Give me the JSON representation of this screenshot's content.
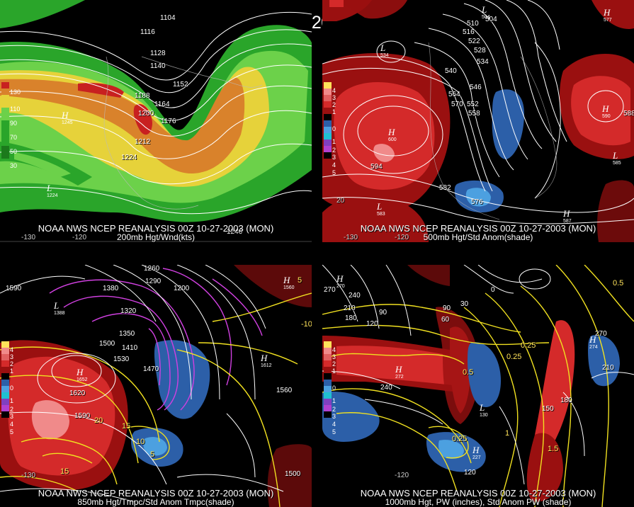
{
  "title": "00Z 10-27-2003 (MON)",
  "panels": [
    {
      "id": "p1",
      "caption_line1": "NOAA NWS NCEP REANALYSIS 00Z 10-27-2003 (MON)",
      "caption_line2": "200mb Hgt/Wnd(kts)",
      "legend": [
        "130",
        "110",
        "90",
        "70",
        "50",
        "30"
      ],
      "labels": [
        "1104",
        "1116",
        "1128",
        "1140",
        "1152",
        "1164",
        "1176",
        "1188",
        "1200",
        "1212",
        "1224",
        "1245",
        "1224",
        "1246"
      ],
      "centers": [
        {
          "letter": "H",
          "value": "1245"
        },
        {
          "letter": "L",
          "value": "1224"
        }
      ],
      "lon_labels": [
        "-130",
        "-120"
      ]
    },
    {
      "id": "p2",
      "caption_line1": "NOAA NWS NCEP REANALYSIS 00Z 10-27-2003 (MON)",
      "caption_line2": "500mb Hgt/Std Anom(shade)",
      "legend": [
        "4",
        "3",
        "2",
        "1",
        "0",
        "1",
        "2",
        "3",
        "4",
        "5"
      ],
      "labels": [
        "504",
        "510",
        "516",
        "522",
        "528",
        "534",
        "540",
        "546",
        "552",
        "558",
        "564",
        "570",
        "576",
        "582",
        "588",
        "594",
        "600",
        "20"
      ],
      "centers": [
        {
          "letter": "H",
          "value": "600"
        },
        {
          "letter": "L",
          "value": "534"
        },
        {
          "letter": "L",
          "value": "583"
        },
        {
          "letter": "H",
          "value": "590"
        },
        {
          "letter": "L",
          "value": "585"
        },
        {
          "letter": "H",
          "value": "587"
        },
        {
          "letter": "H",
          "value": "577"
        },
        {
          "letter": "L",
          "value": "504"
        }
      ],
      "lon_labels": [
        "-130",
        "-120"
      ]
    },
    {
      "id": "p3",
      "caption_line1": "NOAA NWS NCEP REANALYSIS 00Z 10-27-2003 (MON)",
      "caption_line2": "850mb Hgt/Tmpc/Std Anom Tmpc(shade)",
      "legend": [
        "4",
        "3",
        "2",
        "1",
        "0",
        "1",
        "2",
        "3",
        "4",
        "5"
      ],
      "labels": [
        "1590",
        "1380",
        "1260",
        "1290",
        "1200",
        "1320",
        "1350",
        "1410",
        "1470",
        "1500",
        "1530",
        "1560",
        "1590",
        "1620",
        "1500",
        "1260"
      ],
      "yellow_labels": [
        "5",
        "10",
        "15",
        "20",
        "15",
        "5",
        "10",
        "-10"
      ],
      "centers": [
        {
          "letter": "H",
          "value": "1652"
        },
        {
          "letter": "H",
          "value": "1612"
        },
        {
          "letter": "H",
          "value": "1560"
        },
        {
          "letter": "L",
          "value": "1388"
        }
      ],
      "lon_labels": [
        "-130"
      ]
    },
    {
      "id": "p4",
      "caption_line1": "NOAA NWS NCEP REANALYSIS 00Z 10-27-2003 (MON)",
      "caption_line2": "1000mb Hgt, PW (inches), Std Anom PW (shade)",
      "legend": [
        "4",
        "3",
        "2",
        "1",
        "0",
        "1",
        "2",
        "3",
        "4",
        "5"
      ],
      "labels": [
        "270",
        "240",
        "210",
        "180",
        "90",
        "60",
        "30",
        "0",
        "120",
        "150",
        "180",
        "210",
        "240",
        "270",
        "120",
        "90"
      ],
      "yellow_labels": [
        "0.25",
        "0.5",
        "0.25",
        "0.25",
        "1",
        "1.5",
        "0.5",
        "0.25",
        "0.5"
      ],
      "centers": [
        {
          "letter": "H",
          "value": "272"
        },
        {
          "letter": "H",
          "value": "274"
        },
        {
          "letter": "L",
          "value": "130"
        },
        {
          "letter": "H",
          "value": "227"
        },
        {
          "letter": "H",
          "value": "270"
        }
      ],
      "lon_labels": [
        "-120"
      ]
    }
  ],
  "colors": {
    "wind_green": "#2aa52a",
    "wind_lightgreen": "#6cd14a",
    "wind_yellow": "#e6d23a",
    "wind_orange": "#d9822b",
    "wind_red": "#c82020",
    "anom_red": "#d42a2a",
    "anom_darkred": "#9a1010",
    "anom_pink": "#f08a8a",
    "anom_blue": "#2c5fa8",
    "anom_lightblue": "#4ca0e0",
    "contour_magenta": "#d040e0",
    "contour_yellow": "#f0e020"
  }
}
